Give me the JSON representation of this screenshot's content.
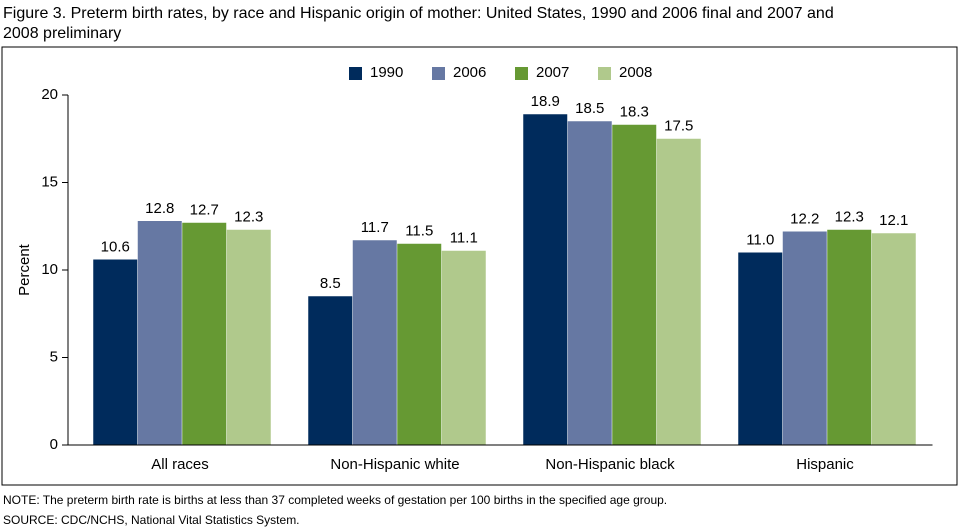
{
  "chart_data": {
    "type": "bar",
    "title_lines": [
      "Figure 3. Preterm birth rates, by race and Hispanic origin of mother: United States, 1990 and 2006 final and 2007 and",
      "2008 preliminary"
    ],
    "y_label": "Percent",
    "categories": [
      "All races",
      "Non-Hispanic white",
      "Non-Hispanic black",
      "Hispanic"
    ],
    "series": [
      {
        "name": "1990",
        "color": "#002b5c",
        "values": [
          10.6,
          8.5,
          18.9,
          11.0
        ],
        "value_labels": [
          "10.6",
          "8.5",
          "18.9",
          "11.0"
        ]
      },
      {
        "name": "2006",
        "color": "#6678a3",
        "values": [
          12.8,
          11.7,
          18.5,
          12.2
        ],
        "value_labels": [
          "12.8",
          "11.7",
          "18.5",
          "12.2"
        ]
      },
      {
        "name": "2007",
        "color": "#669933",
        "values": [
          12.7,
          11.5,
          18.3,
          12.3
        ],
        "value_labels": [
          "12.7",
          "11.5",
          "18.3",
          "12.3"
        ]
      },
      {
        "name": "2008",
        "color": "#b0c98c",
        "values": [
          12.3,
          11.1,
          17.5,
          12.1
        ],
        "value_labels": [
          "12.3",
          "11.1",
          "17.5",
          "12.1"
        ]
      }
    ],
    "ylim": [
      0,
      20
    ],
    "yticks": [
      0,
      5,
      10,
      15,
      20
    ],
    "notes": [
      "NOTE: The preterm birth rate is births at less than 37 completed weeks of gestation per 100 births in the specified age group.",
      "SOURCE: CDC/NCHS, National Vital Statistics System."
    ]
  }
}
